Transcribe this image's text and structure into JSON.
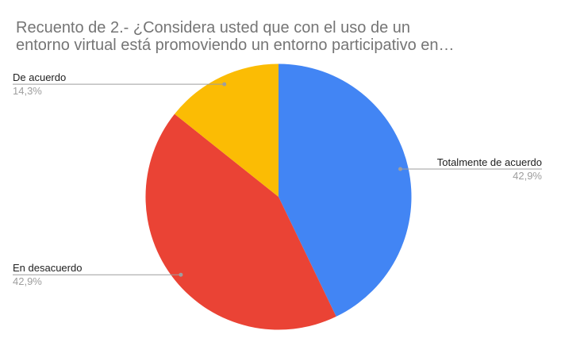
{
  "chart_data": {
    "type": "pie",
    "title": "Recuento de 2.- ¿Considera usted que con el uso de un\nentorno virtual está promoviendo un entorno participativo en…",
    "title_color": "#757575",
    "legend_position": "outside-labels-with-leader-lines",
    "start_angle_deg": 0,
    "direction": "clockwise",
    "connector_color": "#9e9e9e",
    "background_color": "#ffffff",
    "slices": [
      {
        "label": "Totalmente de acuerdo",
        "pct": 42.9,
        "pct_label": "42,9%",
        "color": "#4285F4",
        "label_side": "right"
      },
      {
        "label": "En desacuerdo",
        "pct": 42.9,
        "pct_label": "42,9%",
        "color": "#EA4335",
        "label_side": "left"
      },
      {
        "label": "De acuerdo",
        "pct": 14.3,
        "pct_label": "14,3%",
        "color": "#FBBC04",
        "label_side": "left"
      }
    ]
  }
}
